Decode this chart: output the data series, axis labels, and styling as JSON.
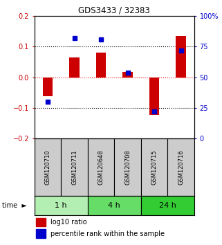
{
  "title": "GDS3433 / 32383",
  "samples": [
    "GSM120710",
    "GSM120711",
    "GSM120648",
    "GSM120708",
    "GSM120715",
    "GSM120716"
  ],
  "log10_ratio": [
    -0.062,
    0.065,
    0.08,
    0.018,
    -0.122,
    0.135
  ],
  "percentile_rank": [
    30,
    82,
    81,
    54,
    22,
    72
  ],
  "time_groups": [
    {
      "label": "1 h",
      "cols": [
        0,
        1
      ],
      "color": "#b3efb3"
    },
    {
      "label": "4 h",
      "cols": [
        2,
        3
      ],
      "color": "#66dd66"
    },
    {
      "label": "24 h",
      "cols": [
        4,
        5
      ],
      "color": "#33cc33"
    }
  ],
  "ylim_left": [
    -0.2,
    0.2
  ],
  "ylim_right": [
    0,
    100
  ],
  "yticks_left": [
    -0.2,
    -0.1,
    0.0,
    0.1,
    0.2
  ],
  "yticks_right": [
    0,
    25,
    50,
    75,
    100
  ],
  "bar_color": "#cc0000",
  "square_color": "#0000cc",
  "background_color": "#ffffff",
  "label_log10": "log10 ratio",
  "label_pct": "percentile rank within the sample",
  "ylabel_left_color": "#cc0000",
  "ylabel_right_color": "#0000cc",
  "sample_box_color": "#cccccc"
}
